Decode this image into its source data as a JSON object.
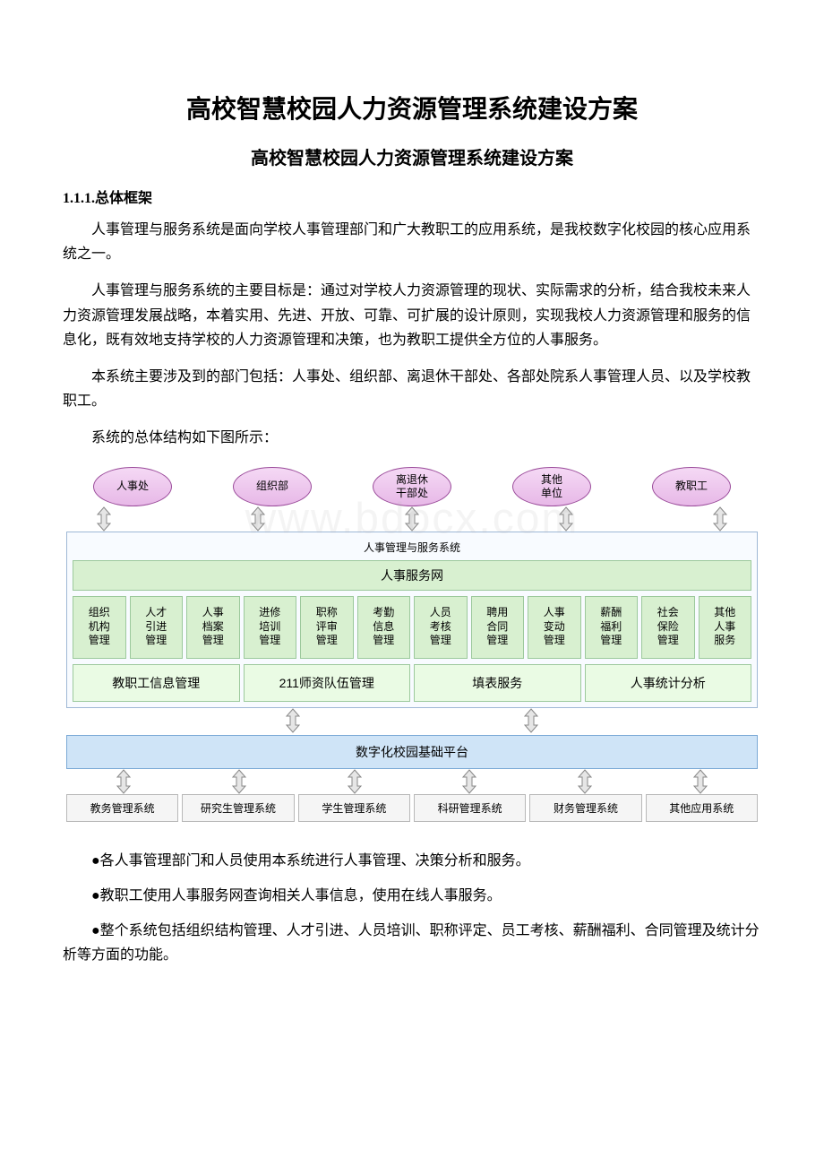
{
  "title": "高校智慧校园人力资源管理系统建设方案",
  "subtitle": "高校智慧校园人力资源管理系统建设方案",
  "sectionHeading": "1.1.1.总体框架",
  "paragraphs": {
    "p1": "人事管理与服务系统是面向学校人事管理部门和广大教职工的应用系统，是我校数字化校园的核心应用系统之一。",
    "p2": "人事管理与服务系统的主要目标是：通过对学校人力资源管理的现状、实际需求的分析，结合我校未来人力资源管理发展战略，本着实用、先进、开放、可靠、可扩展的设计原则，实现我校人力资源管理和服务的信息化，既有效地支持学校的人力资源管理和决策，也为教职工提供全方位的人事服务。",
    "p3": "本系统主要涉及到的部门包括：人事处、组织部、离退休干部处、各部处院系人事管理人员、以及学校教职工。",
    "p4": "系统的总体结构如下图所示："
  },
  "diagram": {
    "type": "flowchart",
    "colors": {
      "ellipse_fill_top": "#f5d9f5",
      "ellipse_fill_bottom": "#e7b8e7",
      "ellipse_border": "#9a4b9a",
      "outer_border": "#9fb8d6",
      "outer_bg": "#f8fbff",
      "green_border": "#9cc99c",
      "green_fill": "#d8f0d0",
      "light_green_fill": "#eafbe4",
      "blue_border": "#7ba9d6",
      "blue_fill": "#cfe4f7",
      "gray_border": "#b8b8b8",
      "gray_fill": "#f5f5f5",
      "arrow_fill": "#e6e6e6",
      "arrow_stroke": "#888888"
    },
    "actors": [
      "人事处",
      "组织部",
      "离退休\n干部处",
      "其他\n单位",
      "教职工"
    ],
    "outerLabel": "人事管理与服务系统",
    "serviceNet": "人事服务网",
    "modules": [
      "组织\n机构\n管理",
      "人才\n引进\n管理",
      "人事\n档案\n管理",
      "进修\n培训\n管理",
      "职称\n评审\n管理",
      "考勤\n信息\n管理",
      "人员\n考核\n管理",
      "聘用\n合同\n管理",
      "人事\n变动\n管理",
      "薪酬\n福利\n管理",
      "社会\n保险\n管理",
      "其他\n人事\n服务"
    ],
    "wideModules": [
      "教职工信息管理",
      "211师资队伍管理",
      "填表服务",
      "人事统计分析"
    ],
    "platform": "数字化校园基础平台",
    "systems": [
      "教务管理系统",
      "研究生管理系统",
      "学生管理系统",
      "科研管理系统",
      "财务管理系统",
      "其他应用系统"
    ],
    "watermark": "www.bdocx.com"
  },
  "bullets": {
    "b1": "●各人事管理部门和人员使用本系统进行人事管理、决策分析和服务。",
    "b2": "●教职工使用人事服务网查询相关人事信息，使用在线人事服务。",
    "b3": "●整个系统包括组织结构管理、人才引进、人员培训、职称评定、员工考核、薪酬福利、合同管理及统计分析等方面的功能。"
  }
}
